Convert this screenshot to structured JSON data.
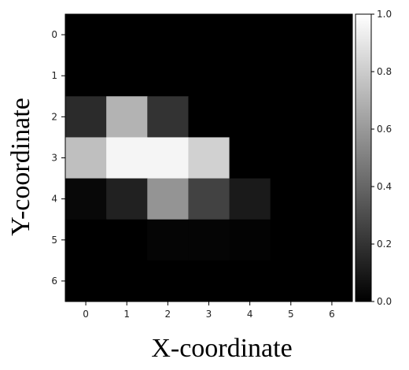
{
  "chart_data": {
    "type": "heatmap",
    "title": "",
    "xlabel": "X-coordinate",
    "ylabel": "Y-coordinate",
    "x": [
      0,
      1,
      2,
      3,
      4,
      5,
      6
    ],
    "y": [
      0,
      1,
      2,
      3,
      4,
      5,
      6
    ],
    "xticks": [
      "0",
      "1",
      "2",
      "3",
      "4",
      "5",
      "6"
    ],
    "yticks": [
      "0",
      "1",
      "2",
      "3",
      "4",
      "5",
      "6"
    ],
    "values": [
      [
        0.0,
        0.0,
        0.0,
        0.0,
        0.0,
        0.0,
        0.0
      ],
      [
        0.0,
        0.0,
        0.0,
        0.0,
        0.0,
        0.0,
        0.0
      ],
      [
        0.17,
        0.7,
        0.2,
        0.0,
        0.0,
        0.0,
        0.0
      ],
      [
        0.75,
        0.96,
        0.96,
        0.82,
        0.0,
        0.0,
        0.0
      ],
      [
        0.03,
        0.13,
        0.58,
        0.26,
        0.1,
        0.0,
        0.0
      ],
      [
        0.0,
        0.0,
        0.02,
        0.02,
        0.01,
        0.0,
        0.0
      ],
      [
        0.0,
        0.0,
        0.0,
        0.0,
        0.0,
        0.0,
        0.0
      ]
    ],
    "colormap": "gray",
    "vmin": 0.0,
    "vmax": 1.0,
    "colorbar": {
      "ticks": [
        "0.0",
        "0.2",
        "0.4",
        "0.6",
        "0.8",
        "1.0"
      ]
    },
    "grid": false
  }
}
